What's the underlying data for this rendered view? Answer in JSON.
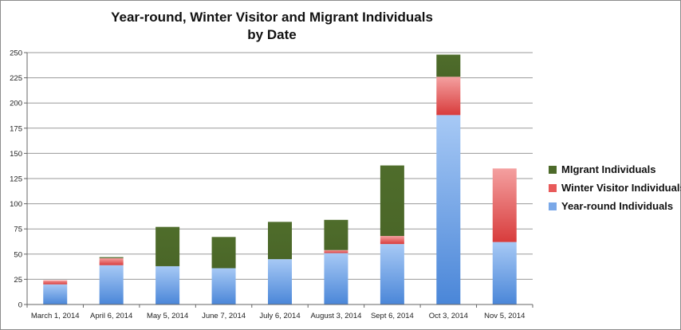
{
  "chart_data": {
    "type": "bar",
    "stacked": true,
    "title_lines": [
      "Year-round, Winter Visitor and Migrant Individuals",
      "by Date"
    ],
    "categories": [
      "March 1, 2014",
      "April 6, 2014",
      "May 5, 2014",
      "June 7, 2014",
      "July 6, 2014",
      "August 3, 2014",
      "Sept 6, 2014",
      "Oct 3, 2014",
      "Nov 5, 2014"
    ],
    "series": [
      {
        "name": "Year-round Individuals",
        "color": "#7aa8e8",
        "values": [
          20,
          39,
          38,
          36,
          45,
          51,
          60,
          188,
          62
        ]
      },
      {
        "name": "Winter Visitor Individuals",
        "color": "#e85a5a",
        "values": [
          4,
          7,
          0,
          0,
          0,
          3,
          8,
          38,
          73
        ]
      },
      {
        "name": "MIgrant Individuals",
        "color": "#4d6a2a",
        "values": [
          0,
          1,
          39,
          31,
          37,
          30,
          70,
          22,
          0
        ]
      }
    ],
    "ylim": [
      0,
      250
    ],
    "yticks": [
      0,
      25,
      50,
      75,
      100,
      125,
      150,
      175,
      200,
      225,
      250
    ],
    "grid": true,
    "legend_position": "right"
  }
}
